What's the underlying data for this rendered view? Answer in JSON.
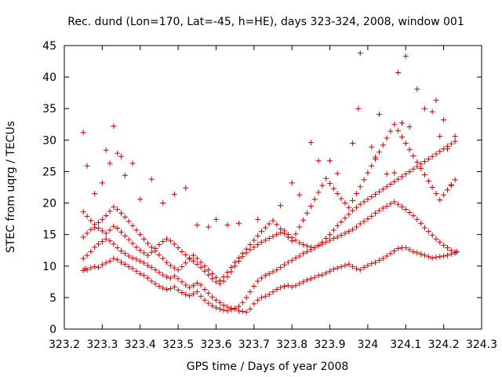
{
  "chart_data": {
    "type": "scatter",
    "title": "Rec. dund (Lon=170, Lat=-45, h=HE), days 323-324, 2008, window 001",
    "xlabel": "GPS time / Days of year 2008",
    "ylabel": "STEC from uqrg / TECUs",
    "xlim": [
      323.2,
      324.3
    ],
    "ylim": [
      0,
      45
    ],
    "xticks": [
      323.2,
      323.3,
      323.4,
      323.5,
      323.6,
      323.7,
      323.8,
      323.9,
      324.0,
      324.1,
      324.2,
      324.3
    ],
    "xtick_labels": [
      "323.2",
      "323.3",
      "323.4",
      "323.5",
      "323.6",
      "323.7",
      "323.8",
      "323.9",
      "324",
      "324.1",
      "324.2",
      "324.3"
    ],
    "yticks": [
      0,
      5,
      10,
      15,
      20,
      25,
      30,
      35,
      40,
      45
    ],
    "ytick_labels": [
      "0",
      "5",
      "10",
      "15",
      "20",
      "25",
      "30",
      "35",
      "40",
      "45"
    ],
    "grid": false,
    "legend": "none",
    "marker": "plus",
    "color": "#cc0000",
    "series": [
      {
        "x": [
          323.25,
          323.255,
          323.26,
          323.27,
          323.28,
          323.29,
          323.3,
          323.31,
          323.32,
          323.33,
          323.34,
          323.35,
          323.36,
          323.37,
          323.38,
          323.39,
          323.4,
          323.41,
          323.42,
          323.43,
          323.44,
          323.45,
          323.46,
          323.47,
          323.48,
          323.49,
          323.5,
          323.51,
          323.52,
          323.53,
          323.54,
          323.55,
          323.56,
          323.57,
          323.58,
          323.59,
          323.6,
          323.61,
          323.62,
          323.63,
          323.64,
          323.65,
          323.66,
          323.67,
          323.68,
          323.69,
          323.7,
          323.71,
          323.72,
          323.73,
          323.74,
          323.75,
          323.76,
          323.77,
          323.78,
          323.79,
          323.8,
          323.81,
          323.82,
          323.83,
          323.84,
          323.85,
          323.86,
          323.87,
          323.88,
          323.89,
          323.9,
          323.91,
          323.92,
          323.93,
          323.94,
          323.95,
          323.96,
          323.97,
          323.98,
          323.99,
          324.0,
          324.01,
          324.02,
          324.03,
          324.04,
          324.05,
          324.06,
          324.07,
          324.08,
          324.09,
          324.1,
          324.11,
          324.12,
          324.13,
          324.14,
          324.15,
          324.16,
          324.17,
          324.18,
          324.19,
          324.2,
          324.21,
          324.22,
          324.23,
          324.235
        ],
        "y": [
          9.3,
          9.6,
          9.4,
          9.7,
          9.9,
          9.8,
          10.2,
          10.5,
          10.8,
          11.2,
          11.0,
          10.6,
          10.3,
          9.9,
          9.6,
          9.2,
          8.8,
          8.5,
          8.1,
          7.6,
          7.2,
          6.8,
          6.5,
          6.3,
          6.4,
          6.7,
          6.2,
          5.8,
          5.5,
          5.3,
          5.6,
          5.9,
          5.2,
          4.6,
          4.1,
          3.7,
          3.4,
          3.2,
          3.0,
          2.9,
          3.1,
          3.3,
          2.9,
          2.8,
          2.7,
          3.2,
          4.0,
          4.6,
          5.0,
          5.2,
          5.5,
          5.9,
          6.3,
          6.6,
          6.8,
          6.9,
          6.7,
          6.9,
          7.2,
          7.5,
          7.8,
          8.0,
          8.2,
          8.5,
          8.6,
          8.9,
          9.2,
          9.5,
          9.7,
          9.9,
          10.1,
          10.3,
          9.9,
          9.6,
          9.4,
          9.8,
          10.1,
          10.4,
          10.6,
          10.9,
          11.2,
          11.6,
          12.0,
          12.4,
          12.8,
          12.9,
          12.9,
          12.6,
          12.3,
          12.1,
          11.9,
          11.7,
          11.5,
          11.3,
          11.4,
          11.5,
          11.6,
          11.7,
          11.9,
          12.1,
          12.3
        ]
      },
      {
        "x": [
          323.25,
          323.26,
          323.27,
          323.28,
          323.29,
          323.3,
          323.31,
          323.32,
          323.33,
          323.34,
          323.35,
          323.36,
          323.37,
          323.38,
          323.39,
          323.4,
          323.41,
          323.42,
          323.43,
          323.44,
          323.45,
          323.46,
          323.47,
          323.48,
          323.49,
          323.5,
          323.51,
          323.52,
          323.53,
          323.54,
          323.55,
          323.56,
          323.57,
          323.58,
          323.59,
          323.6,
          323.61,
          323.62,
          323.63,
          323.64,
          323.65,
          323.66,
          323.67,
          323.68,
          323.69,
          323.7,
          323.71,
          323.72,
          323.73,
          323.74,
          323.75,
          323.76,
          323.77,
          323.78,
          323.79,
          323.8,
          323.81,
          323.82,
          323.83,
          323.84,
          323.85,
          323.86,
          323.87,
          323.88,
          323.89,
          323.9,
          323.91,
          323.92,
          323.93,
          323.94,
          323.95,
          323.96,
          323.97,
          323.98,
          323.99,
          324.0,
          324.01,
          324.02,
          324.03,
          324.04,
          324.05,
          324.06,
          324.07,
          324.08,
          324.09,
          324.1,
          324.11,
          324.12,
          324.13,
          324.14,
          324.15,
          324.16,
          324.17,
          324.18,
          324.19,
          324.2,
          324.21,
          324.22,
          324.23
        ],
        "y": [
          11.2,
          11.7,
          12.3,
          13.0,
          13.5,
          13.9,
          14.3,
          14.0,
          13.5,
          12.9,
          12.4,
          12.0,
          11.6,
          11.3,
          11.1,
          10.8,
          10.5,
          10.1,
          9.8,
          9.4,
          9.0,
          8.6,
          8.3,
          8.1,
          8.4,
          8.0,
          7.5,
          7.0,
          6.6,
          6.9,
          7.3,
          7.0,
          6.3,
          5.7,
          5.1,
          4.6,
          4.2,
          3.8,
          3.5,
          3.3,
          3.2,
          3.6,
          4.2,
          5.0,
          5.9,
          6.8,
          7.6,
          8.1,
          8.5,
          8.8,
          9.1,
          9.4,
          9.8,
          10.2,
          10.6,
          10.9,
          11.3,
          11.6,
          12.0,
          12.3,
          12.6,
          12.9,
          13.2,
          13.5,
          13.8,
          14.1,
          14.4,
          14.6,
          14.9,
          15.2,
          15.5,
          15.8,
          16.2,
          16.7,
          17.1,
          17.5,
          17.9,
          18.4,
          18.8,
          19.2,
          19.5,
          19.9,
          20.2,
          19.8,
          19.4,
          19.0,
          18.5,
          18.0,
          17.4,
          16.8,
          16.1,
          15.5,
          14.9,
          14.3,
          13.8,
          13.3,
          12.9,
          12.5,
          12.2
        ]
      },
      {
        "x": [
          323.25,
          323.26,
          323.27,
          323.28,
          323.29,
          323.3,
          323.31,
          323.32,
          323.33,
          323.34,
          323.35,
          323.36,
          323.37,
          323.38,
          323.39,
          323.4,
          323.41,
          323.42,
          323.43,
          323.44,
          323.45,
          323.46,
          323.47,
          323.48,
          323.49,
          323.5,
          323.51,
          323.52,
          323.53,
          323.54,
          323.55,
          323.56,
          323.57,
          323.58,
          323.59,
          323.6,
          323.61,
          323.62,
          323.63,
          323.64,
          323.65,
          323.66,
          323.67,
          323.68,
          323.69,
          323.7,
          323.71,
          323.72,
          323.73,
          323.74,
          323.75,
          323.76,
          323.77,
          323.78,
          323.79,
          323.8,
          323.81,
          323.82,
          323.83,
          323.84,
          323.85,
          323.86,
          323.87,
          323.88,
          323.89,
          323.9,
          323.91,
          323.92,
          323.93,
          323.94,
          323.95,
          323.96,
          323.97,
          323.98,
          323.99,
          324.0,
          324.01,
          324.02,
          324.03,
          324.04,
          324.05,
          324.06,
          324.07,
          324.08,
          324.09,
          324.1,
          324.11,
          324.12,
          324.13,
          324.14,
          324.15,
          324.16,
          324.17,
          324.18,
          324.19,
          324.2,
          324.21,
          324.22,
          324.23
        ],
        "y": [
          14.6,
          15.2,
          15.8,
          16.1,
          16.0,
          15.6,
          15.2,
          15.7,
          16.3,
          16.0,
          15.4,
          14.8,
          14.2,
          13.6,
          13.0,
          12.5,
          12.1,
          11.7,
          12.2,
          12.8,
          13.4,
          13.9,
          14.3,
          14.0,
          13.5,
          12.9,
          12.3,
          11.8,
          11.3,
          10.8,
          10.3,
          9.8,
          9.2,
          8.6,
          8.0,
          7.5,
          7.2,
          7.6,
          8.3,
          9.1,
          10.0,
          10.8,
          11.5,
          12.1,
          12.6,
          13.0,
          13.4,
          13.8,
          14.1,
          14.4,
          14.7,
          15.0,
          15.3,
          15.6,
          15.0,
          14.5,
          14.1,
          13.7,
          13.4,
          13.2,
          13.0,
          12.9,
          13.3,
          13.8,
          14.4,
          15.0,
          15.7,
          16.4,
          17.0,
          17.6,
          18.2,
          18.8,
          19.3,
          19.8,
          20.2,
          20.6,
          21.0,
          21.4,
          21.8,
          22.2,
          22.6,
          23.0,
          23.4,
          23.8,
          24.2,
          24.6,
          25.0,
          25.4,
          25.8,
          26.2,
          26.6,
          27.0,
          27.4,
          27.8,
          28.2,
          28.6,
          29.0,
          29.4,
          29.8
        ]
      },
      {
        "x": [
          323.25,
          323.26,
          323.27,
          323.28,
          323.29,
          323.3,
          323.31,
          323.32,
          323.33,
          323.34,
          323.35,
          323.36,
          323.37,
          323.38,
          323.39,
          323.4,
          323.41,
          323.42,
          323.43,
          323.44,
          323.45,
          323.46,
          323.47,
          323.48,
          323.49,
          323.5,
          323.51,
          323.52,
          323.53,
          323.54,
          323.55,
          323.56,
          323.57,
          323.58,
          323.59,
          323.6,
          323.61,
          323.62,
          323.63,
          323.64,
          323.65,
          323.66,
          323.67,
          323.68,
          323.69,
          323.7,
          323.71,
          323.72,
          323.73,
          323.74,
          323.75,
          323.76,
          323.77,
          323.78,
          323.79,
          323.8,
          323.81,
          323.82,
          323.83,
          323.84,
          323.85,
          323.86,
          323.87,
          323.88,
          323.89,
          323.9,
          323.91,
          323.92,
          323.93,
          323.94,
          323.95,
          323.96,
          323.97,
          323.98,
          323.99,
          324.0,
          324.01,
          324.02,
          324.03,
          324.04,
          324.05,
          324.06,
          324.07,
          324.08,
          324.09,
          324.1,
          324.11,
          324.12,
          324.13,
          324.14,
          324.15,
          324.16,
          324.17,
          324.18,
          324.19,
          324.2,
          324.21,
          324.22,
          324.23
        ],
        "y": [
          18.6,
          17.9,
          17.2,
          16.6,
          16.9,
          17.4,
          18.0,
          18.7,
          19.4,
          19.0,
          18.4,
          17.8,
          17.1,
          16.4,
          15.7,
          15.0,
          14.3,
          13.6,
          13.0,
          12.4,
          11.8,
          11.2,
          10.6,
          10.1,
          9.7,
          9.4,
          9.9,
          10.5,
          11.1,
          11.7,
          11.2,
          10.6,
          10.0,
          9.4,
          8.8,
          8.2,
          7.7,
          8.3,
          9.0,
          9.8,
          10.6,
          11.3,
          12.0,
          12.7,
          13.4,
          14.1,
          14.8,
          15.5,
          16.1,
          16.7,
          17.2,
          16.6,
          15.9,
          15.2,
          14.6,
          14.0,
          15.1,
          16.2,
          17.3,
          18.4,
          19.5,
          20.6,
          21.7,
          22.8,
          23.9,
          23.1,
          22.3,
          21.5,
          20.7,
          20.0,
          19.3,
          20.4,
          21.5,
          22.6,
          23.7,
          24.8,
          25.9,
          27.0,
          28.1,
          29.2,
          30.3,
          31.4,
          32.5,
          31.5,
          30.5,
          29.5,
          28.5,
          27.5,
          26.5,
          25.5,
          24.5,
          23.5,
          22.5,
          21.5,
          20.5,
          21.3,
          22.1,
          22.9,
          23.7
        ]
      },
      {
        "x": [
          323.25,
          323.26,
          323.28,
          323.3,
          323.31,
          323.32,
          323.33,
          323.34,
          323.35,
          323.36,
          323.38,
          323.4,
          323.43,
          323.46,
          323.49,
          323.52,
          323.55,
          323.58,
          323.6,
          323.63,
          323.66,
          323.71,
          323.77,
          323.8,
          323.82,
          323.85,
          323.87,
          323.9,
          323.92,
          323.96,
          323.975,
          323.98,
          324.01,
          324.02,
          324.03,
          324.05,
          324.07,
          324.08,
          324.09,
          324.1,
          324.11,
          324.13,
          324.15,
          324.17,
          324.18,
          324.19,
          324.2,
          324.21,
          324.22,
          324.23
        ],
        "y": [
          31.2,
          25.9,
          21.5,
          23.2,
          28.4,
          26.3,
          32.2,
          27.9,
          27.4,
          24.4,
          26.3,
          20.6,
          23.8,
          20.0,
          21.4,
          22.4,
          16.5,
          16.2,
          17.4,
          16.5,
          16.8,
          17.4,
          19.6,
          23.2,
          21.3,
          29.6,
          26.7,
          26.7,
          24.7,
          29.5,
          35.0,
          43.8,
          28.9,
          27.3,
          34.1,
          24.6,
          24.8,
          40.7,
          32.7,
          43.3,
          32.1,
          38.1,
          35.0,
          34.5,
          36.3,
          30.6,
          33.2,
          28.6,
          22.8,
          30.6
        ]
      }
    ]
  }
}
